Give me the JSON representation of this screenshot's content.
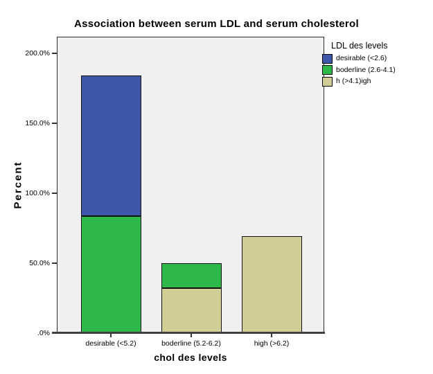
{
  "chart_data": {
    "type": "bar",
    "stacked": true,
    "title": "Association between serum LDL and serum cholesterol",
    "xlabel": "chol des levels",
    "ylabel": "Percent",
    "legend_title": "LDL des levels",
    "legend_position": "top-right",
    "grid": false,
    "plot_background": "#F0F0F0",
    "axis_line_color": "#404040",
    "ylim": [
      0,
      212
    ],
    "yticks": [
      {
        "value": 0,
        "label": ".0%"
      },
      {
        "value": 50,
        "label": "50.0%"
      },
      {
        "value": 100,
        "label": "100.0%"
      },
      {
        "value": 150,
        "label": "150.0%"
      },
      {
        "value": 200,
        "label": "200.0%"
      }
    ],
    "categories": [
      "desirable (<5.2)",
      "boderline (5.2-6.2)",
      "high (>6.2)"
    ],
    "series": [
      {
        "name": "desirable (<2.6)",
        "color": "#3E57A8",
        "values": [
          100.5,
          0.0,
          0.0
        ]
      },
      {
        "name": "boderline (2.6-4.1)",
        "color": "#2EB84A",
        "values": [
          83.5,
          17.9,
          0.0
        ]
      },
      {
        "name": "h (>4.1)igh",
        "color": "#D2CD96",
        "values": [
          0.0,
          32.1,
          69.5
        ]
      }
    ],
    "stack_order_bottom_to_top": [
      "h (>4.1)igh",
      "boderline (2.6-4.1)",
      "desirable (<2.6)"
    ]
  }
}
